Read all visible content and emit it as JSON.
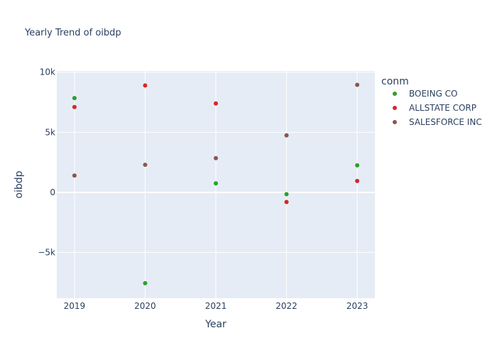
{
  "chart_data": {
    "type": "scatter",
    "title": "Yearly Trend of oibdp",
    "xlabel": "Year",
    "ylabel": "oibdp",
    "x": [
      2019,
      2020,
      2021,
      2022,
      2023
    ],
    "xlim": [
      2018.75,
      2023.25
    ],
    "ylim": [
      -8800,
      10100
    ],
    "y_ticks": [
      -5000,
      0,
      5000,
      10000
    ],
    "y_tick_labels": [
      "−5k",
      "0",
      "5k",
      "10k"
    ],
    "x_ticks": [
      2019,
      2020,
      2021,
      2022,
      2023
    ],
    "x_tick_labels": [
      "2019",
      "2020",
      "2021",
      "2022",
      "2023"
    ],
    "grid": true,
    "legend_title": "conm",
    "legend_position": "right",
    "plot_bgcolor": "#e5ecf6",
    "series": [
      {
        "name": "BOEING CO",
        "color": "#2ca02c",
        "values": [
          7850,
          -7550,
          750,
          -150,
          2250
        ]
      },
      {
        "name": "ALLSTATE CORP",
        "color": "#d62728",
        "values": [
          7100,
          8900,
          7400,
          -800,
          950
        ]
      },
      {
        "name": "SALESFORCE INC",
        "color": "#8c564b",
        "values": [
          1400,
          2300,
          2850,
          4750,
          8950
        ]
      }
    ]
  }
}
